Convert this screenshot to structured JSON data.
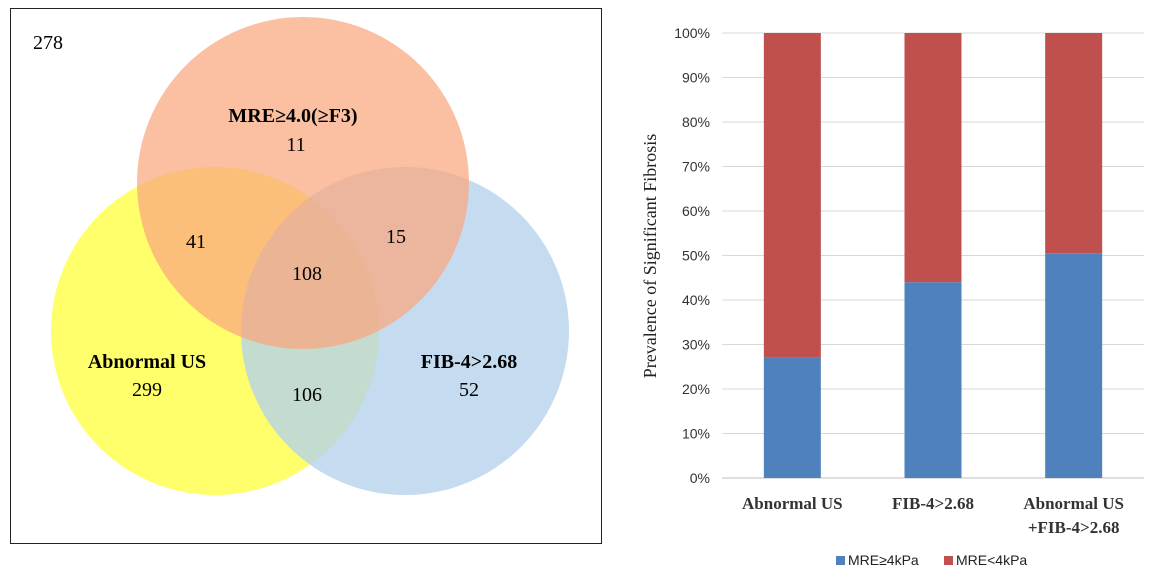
{
  "venn": {
    "outside_count": "278",
    "sets": [
      {
        "label": "MRE≥4.0(≥F3)",
        "count": "11",
        "color": "#F9A67E"
      },
      {
        "label": "Abnormal US",
        "count": "299",
        "color": "#FFFF3A"
      },
      {
        "label": "FIB-4>2.68",
        "count": "52",
        "color": "#B4D1EC"
      }
    ],
    "intersections": {
      "mre_us": "41",
      "mre_fib": "15",
      "all_three": "108",
      "us_fib": "106"
    }
  },
  "chart_data": {
    "type": "bar",
    "stacked": true,
    "percent": true,
    "categories": [
      "Abnormal US",
      "FIB-4>2.68",
      "Abnormal US\n+FIB-4>2.68"
    ],
    "series": [
      {
        "name": "MRE≥4kPa",
        "values": [
          27,
          44,
          50.5
        ],
        "color": "#4F81BD"
      },
      {
        "name": "MRE<4kPa",
        "values": [
          73,
          56,
          49.5
        ],
        "color": "#C0504D"
      }
    ],
    "ylabel": "Prevalence of Significant  Fibrosis",
    "ylim": [
      0,
      100
    ],
    "yticks": [
      "0%",
      "10%",
      "20%",
      "30%",
      "40%",
      "50%",
      "60%",
      "70%",
      "80%",
      "90%",
      "100%"
    ],
    "grid": true,
    "legend_position": "bottom"
  }
}
